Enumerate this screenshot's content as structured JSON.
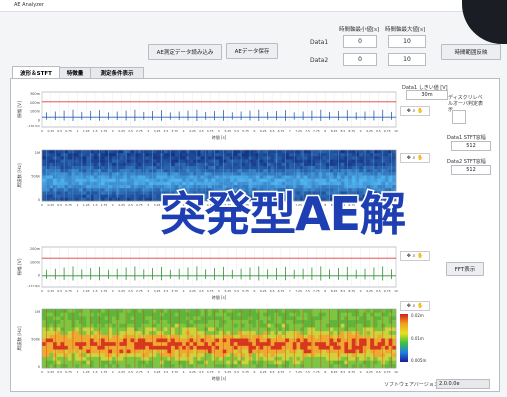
{
  "window": {
    "title": "AE Analyzer"
  },
  "range": {
    "min_label": "時間軸最小値[s]",
    "max_label": "時間軸最大値[s]",
    "rows": [
      {
        "label": "Data1",
        "min": "0",
        "max": "10"
      },
      {
        "label": "Data2",
        "min": "0",
        "max": "10"
      }
    ],
    "apply_label": "時間範囲反映"
  },
  "toolbar": {
    "load_label": "AE測定データ読み込み",
    "save_label": "AEデータ保存"
  },
  "tabs": [
    "波形＆STFT",
    "特徴量",
    "測定条件表示"
  ],
  "right_panel": {
    "threshold_label": "Data1 しきい値 [V]",
    "threshold_value": "30m",
    "discrete_label": "ディスクリレベルオーバ判定表示",
    "stft1_label": "Data1 STFT窓幅",
    "stft1_value": "512",
    "stft2_label": "Data2 STFT窓幅",
    "stft2_value": "512",
    "fft_label": "FFT表示"
  },
  "plots": {
    "tools": "✥ ⌕ ✋",
    "wave_ylabel": "振幅 [V]",
    "freq_ylabel": "周波数 [Hz]",
    "xlabel": "時間 [s]",
    "wave1_yticks": [
      "300m",
      "200m",
      "100m",
      "0"
    ],
    "wave1_ymin": "-176.5m",
    "wave2_yticks": [
      "200m",
      "100m",
      "0"
    ],
    "wave2_ymin": "-177.8m",
    "spec1_yticks": [
      "1M",
      "500k",
      "0"
    ],
    "spec2_yticks": [
      "1M",
      "500k",
      "0"
    ],
    "spec_cbar": [
      "0.02m",
      "0.01m",
      "0.005m"
    ],
    "xticks": [
      "0",
      "0.25",
      "0.5",
      "0.75",
      "1",
      "1.25",
      "1.5",
      "1.75",
      "2",
      "2.25",
      "2.5",
      "2.75",
      "3",
      "3.25",
      "3.5",
      "3.75",
      "4",
      "4.25",
      "4.5",
      "4.75",
      "5",
      "5.25",
      "5.5",
      "5.75",
      "6",
      "6.25",
      "6.5",
      "6.75",
      "7",
      "7.25",
      "7.5",
      "7.75",
      "8",
      "8.25",
      "8.5",
      "8.75",
      "9",
      "9.25",
      "9.5",
      "9.75",
      "10"
    ]
  },
  "footer": {
    "version_label": "ソフトウェアバージョン",
    "version_value": "2.0.0.0e"
  },
  "banner": "突発型AE解",
  "colors": {
    "threshold": "#e23a3a",
    "wave1": "#2b5fb4",
    "wave2": "#2f8f2f",
    "banner": "#1d3fb3"
  }
}
